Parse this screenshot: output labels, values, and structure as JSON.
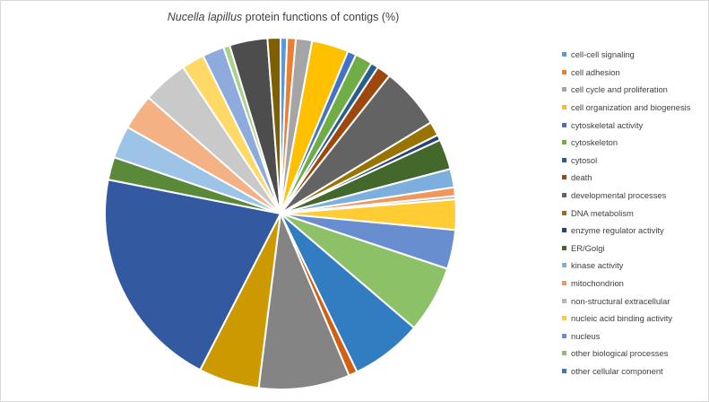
{
  "chart_data": {
    "type": "pie",
    "title_species": "Nucella lapillus",
    "title_rest": " protein functions of contigs (%)",
    "slices": [
      {
        "label": "cell-cell signaling",
        "value": 0.6,
        "color": "#5b9bd5"
      },
      {
        "label": "cell adhesion",
        "value": 0.8,
        "color": "#ed7d31"
      },
      {
        "label": "cell cycle and proliferation",
        "value": 1.5,
        "color": "#a5a5a5"
      },
      {
        "label": "cell organization and biogenesis",
        "value": 3.4,
        "color": "#ffc000"
      },
      {
        "label": "cytoskeletal activity",
        "value": 0.8,
        "color": "#4472c4"
      },
      {
        "label": "cytoskeleton",
        "value": 1.6,
        "color": "#70ad47"
      },
      {
        "label": "cytosol",
        "value": 0.7,
        "color": "#255e91"
      },
      {
        "label": "death",
        "value": 1.3,
        "color": "#9e480e"
      },
      {
        "label": "developmental processes",
        "value": 5.7,
        "color": "#636363"
      },
      {
        "label": "DNA metabolism",
        "value": 1.3,
        "color": "#997300"
      },
      {
        "label": "enzyme regulator activity",
        "value": 0.5,
        "color": "#264478"
      },
      {
        "label": "ER/Golgi",
        "value": 2.8,
        "color": "#43682b"
      },
      {
        "label": "kinase activity",
        "value": 1.7,
        "color": "#7cafdd"
      },
      {
        "label": "mitochondrion",
        "value": 0.8,
        "color": "#f1975a"
      },
      {
        "label": "non-structural extracellular",
        "value": 0.3,
        "color": "#b7b7b7"
      },
      {
        "label": "nucleic acid binding activity",
        "value": 2.8,
        "color": "#ffcd33"
      },
      {
        "label": "nucleus",
        "value": 3.6,
        "color": "#698ed0"
      },
      {
        "label": "other biological processes",
        "value": 6.2,
        "color": "#8cc168"
      },
      {
        "label": "other cellular component",
        "value": 6.6,
        "color": "#327dc2"
      },
      {
        "label": "",
        "value": 0.8,
        "color": "#d26012"
      },
      {
        "label": "",
        "value": 8.4,
        "color": "#848484"
      },
      {
        "label": "",
        "value": 5.6,
        "color": "#cc9a00"
      },
      {
        "label": "",
        "value": 20.6,
        "color": "#335aa1"
      },
      {
        "label": "",
        "value": 2.1,
        "color": "#5a8a39"
      },
      {
        "label": "",
        "value": 3.0,
        "color": "#9dc3e6"
      },
      {
        "label": "",
        "value": 3.3,
        "color": "#f4b183"
      },
      {
        "label": "",
        "value": 4.2,
        "color": "#c9c9c9"
      },
      {
        "label": "",
        "value": 2.1,
        "color": "#ffd966"
      },
      {
        "label": "",
        "value": 2.0,
        "color": "#8faadc"
      },
      {
        "label": "",
        "value": 0.6,
        "color": "#a9d18e"
      },
      {
        "label": "",
        "value": 3.5,
        "color": "#4d4d4d"
      },
      {
        "label": "",
        "value": 1.2,
        "color": "#7f6000"
      }
    ]
  },
  "legend": {
    "items": [
      {
        "label": "cell-cell signaling",
        "color": "#5b9bd5"
      },
      {
        "label": "cell adhesion",
        "color": "#ed7d31"
      },
      {
        "label": "cell cycle and proliferation",
        "color": "#a5a5a5"
      },
      {
        "label": "cell organization and biogenesis",
        "color": "#ffc000"
      },
      {
        "label": "cytoskeletal activity",
        "color": "#4472c4"
      },
      {
        "label": "cytoskeleton",
        "color": "#70ad47"
      },
      {
        "label": "cytosol",
        "color": "#255e91"
      },
      {
        "label": "death",
        "color": "#9e480e"
      },
      {
        "label": "developmental processes",
        "color": "#636363"
      },
      {
        "label": "DNA metabolism",
        "color": "#997300"
      },
      {
        "label": "enzyme regulator activity",
        "color": "#264478"
      },
      {
        "label": "ER/Golgi",
        "color": "#43682b"
      },
      {
        "label": "kinase activity",
        "color": "#7cafdd"
      },
      {
        "label": "mitochondrion",
        "color": "#f1975a"
      },
      {
        "label": "non-structural extracellular",
        "color": "#b7b7b7"
      },
      {
        "label": "nucleic acid binding activity",
        "color": "#ffcd33"
      },
      {
        "label": "nucleus",
        "color": "#698ed0"
      },
      {
        "label": "other biological processes",
        "color": "#8cc168"
      },
      {
        "label": "other cellular component",
        "color": "#327dc2"
      }
    ]
  }
}
